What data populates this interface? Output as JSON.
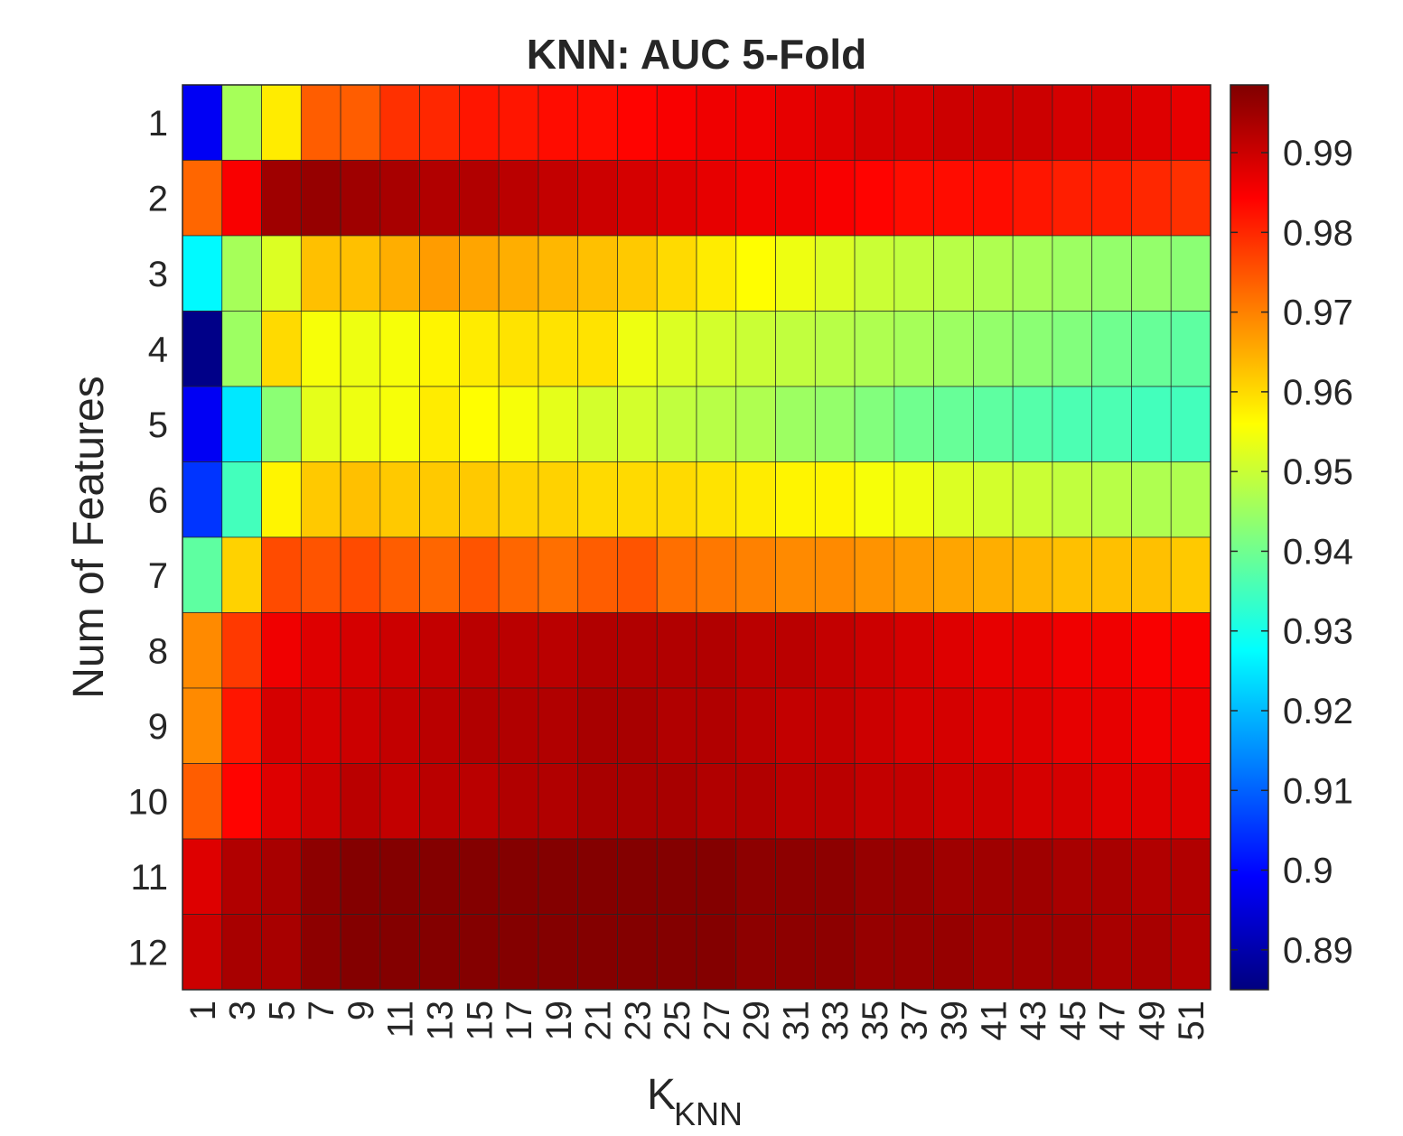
{
  "chart_data": {
    "type": "heatmap",
    "title": "KNN: AUC 5-Fold",
    "xlabel": "K",
    "xlabel_sub": "KNN",
    "ylabel": "Num of Features",
    "x_categories": [
      "1",
      "3",
      "5",
      "7",
      "9",
      "11",
      "13",
      "15",
      "17",
      "19",
      "21",
      "23",
      "25",
      "27",
      "29",
      "31",
      "33",
      "35",
      "37",
      "39",
      "41",
      "43",
      "45",
      "47",
      "49",
      "51"
    ],
    "y_categories": [
      "1",
      "2",
      "3",
      "4",
      "5",
      "6",
      "7",
      "8",
      "9",
      "10",
      "11",
      "12"
    ],
    "colormap": "jet",
    "clim": [
      0.885,
      0.9985
    ],
    "colorbar_ticks": [
      "0.89",
      "0.9",
      "0.91",
      "0.92",
      "0.93",
      "0.94",
      "0.95",
      "0.96",
      "0.97",
      "0.98",
      "0.99"
    ],
    "grid": true,
    "values": [
      [
        0.898,
        0.946,
        0.958,
        0.974,
        0.974,
        0.979,
        0.98,
        0.982,
        0.982,
        0.983,
        0.983,
        0.984,
        0.985,
        0.986,
        0.986,
        0.987,
        0.988,
        0.989,
        0.989,
        0.99,
        0.99,
        0.99,
        0.989,
        0.989,
        0.988,
        0.987
      ],
      [
        0.973,
        0.985,
        0.995,
        0.996,
        0.995,
        0.994,
        0.993,
        0.993,
        0.992,
        0.991,
        0.99,
        0.989,
        0.988,
        0.987,
        0.986,
        0.986,
        0.985,
        0.984,
        0.983,
        0.983,
        0.983,
        0.982,
        0.981,
        0.981,
        0.98,
        0.979
      ],
      [
        0.927,
        0.946,
        0.952,
        0.963,
        0.963,
        0.965,
        0.967,
        0.966,
        0.965,
        0.964,
        0.963,
        0.962,
        0.96,
        0.958,
        0.956,
        0.954,
        0.952,
        0.95,
        0.949,
        0.948,
        0.947,
        0.946,
        0.945,
        0.944,
        0.944,
        0.943
      ],
      [
        0.886,
        0.945,
        0.96,
        0.955,
        0.954,
        0.955,
        0.957,
        0.958,
        0.959,
        0.959,
        0.959,
        0.954,
        0.952,
        0.951,
        0.95,
        0.949,
        0.948,
        0.947,
        0.946,
        0.945,
        0.944,
        0.943,
        0.942,
        0.94,
        0.939,
        0.938
      ],
      [
        0.898,
        0.925,
        0.943,
        0.953,
        0.954,
        0.955,
        0.958,
        0.956,
        0.955,
        0.953,
        0.951,
        0.951,
        0.949,
        0.948,
        0.947,
        0.945,
        0.944,
        0.942,
        0.94,
        0.939,
        0.938,
        0.937,
        0.936,
        0.936,
        0.935,
        0.935
      ],
      [
        0.905,
        0.935,
        0.957,
        0.962,
        0.963,
        0.962,
        0.962,
        0.962,
        0.961,
        0.961,
        0.96,
        0.96,
        0.96,
        0.959,
        0.958,
        0.957,
        0.957,
        0.955,
        0.954,
        0.952,
        0.951,
        0.95,
        0.949,
        0.948,
        0.947,
        0.947
      ],
      [
        0.938,
        0.961,
        0.976,
        0.975,
        0.976,
        0.974,
        0.973,
        0.975,
        0.973,
        0.972,
        0.974,
        0.975,
        0.972,
        0.971,
        0.97,
        0.969,
        0.969,
        0.968,
        0.967,
        0.966,
        0.965,
        0.964,
        0.963,
        0.963,
        0.963,
        0.962
      ],
      [
        0.969,
        0.978,
        0.986,
        0.988,
        0.989,
        0.99,
        0.991,
        0.992,
        0.992,
        0.992,
        0.993,
        0.993,
        0.993,
        0.993,
        0.992,
        0.992,
        0.991,
        0.99,
        0.989,
        0.988,
        0.987,
        0.987,
        0.986,
        0.986,
        0.985,
        0.985
      ],
      [
        0.969,
        0.982,
        0.989,
        0.989,
        0.99,
        0.991,
        0.992,
        0.993,
        0.993,
        0.993,
        0.994,
        0.994,
        0.993,
        0.993,
        0.992,
        0.991,
        0.991,
        0.99,
        0.989,
        0.989,
        0.988,
        0.988,
        0.987,
        0.987,
        0.986,
        0.986
      ],
      [
        0.974,
        0.984,
        0.988,
        0.99,
        0.992,
        0.991,
        0.992,
        0.992,
        0.993,
        0.993,
        0.994,
        0.994,
        0.994,
        0.993,
        0.993,
        0.992,
        0.992,
        0.991,
        0.991,
        0.99,
        0.99,
        0.989,
        0.989,
        0.988,
        0.988,
        0.988
      ],
      [
        0.988,
        0.993,
        0.994,
        0.997,
        0.998,
        0.998,
        0.998,
        0.998,
        0.998,
        0.998,
        0.998,
        0.998,
        0.998,
        0.998,
        0.997,
        0.997,
        0.997,
        0.996,
        0.996,
        0.995,
        0.995,
        0.995,
        0.994,
        0.994,
        0.993,
        0.993
      ],
      [
        0.99,
        0.994,
        0.994,
        0.997,
        0.998,
        0.998,
        0.998,
        0.998,
        0.998,
        0.998,
        0.998,
        0.998,
        0.998,
        0.998,
        0.997,
        0.997,
        0.997,
        0.996,
        0.996,
        0.996,
        0.995,
        0.995,
        0.995,
        0.994,
        0.994,
        0.993
      ]
    ]
  }
}
